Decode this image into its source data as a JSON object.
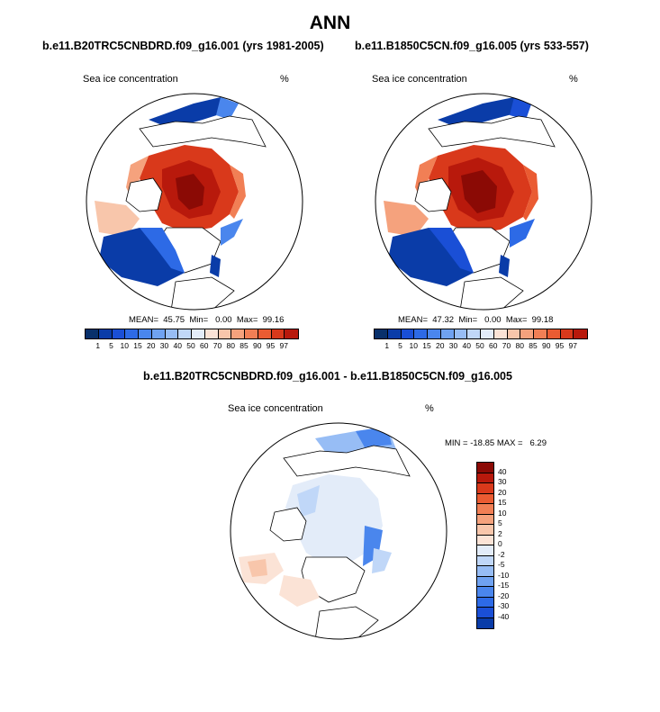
{
  "figure": {
    "title": "ANN",
    "units": "%",
    "variable": "Sea ice concentration"
  },
  "colors": {
    "seq": [
      "#08306b",
      "#0a3ca8",
      "#1a4fd6",
      "#2d6ae6",
      "#4a86ed",
      "#6fa2f1",
      "#97bdf5",
      "#c0d7f8",
      "#e3ecf9",
      "#fbe3d6",
      "#f8c6ab",
      "#f5a27d",
      "#f17f55",
      "#ea5b32",
      "#d9391b",
      "#b8190c",
      "#8b0a05"
    ],
    "diff": [
      "#8b0a05",
      "#b8190c",
      "#d9391b",
      "#ea5b32",
      "#f17f55",
      "#f5a27d",
      "#f8c6ab",
      "#fbe3d6",
      "#e3ecf9",
      "#c0d7f8",
      "#97bdf5",
      "#6fa2f1",
      "#4a86ed",
      "#2d6ae6",
      "#1a4fd6",
      "#0a3ca8",
      "#08306b"
    ]
  },
  "chart_data": [
    {
      "type": "heatmap",
      "projection": "north polar stereographic",
      "title": "b.e11.B20TRC5CNBDRD.f09_g16.001 (yrs 1981-2005)",
      "variable_label": "Sea ice concentration",
      "units": "%",
      "stats": {
        "mean": "45.75",
        "min": "0.00",
        "max": "99.16"
      },
      "stats_text": "MEAN=  45.75  Min=   0.00  Max=  99.16",
      "colorbar_levels": [
        "1",
        "5",
        "10",
        "15",
        "20",
        "30",
        "40",
        "50",
        "60",
        "70",
        "80",
        "85",
        "90",
        "95",
        "97"
      ],
      "colorbar_orientation": "horizontal"
    },
    {
      "type": "heatmap",
      "projection": "north polar stereographic",
      "title": "b.e11.B1850C5CN.f09_g16.005 (yrs 533-557)",
      "variable_label": "Sea ice concentration",
      "units": "%",
      "stats": {
        "mean": "47.32",
        "min": "0.00",
        "max": "99.18"
      },
      "stats_text": "MEAN=  47.32  Min=   0.00  Max=  99.18",
      "colorbar_levels": [
        "1",
        "5",
        "10",
        "15",
        "20",
        "30",
        "40",
        "50",
        "60",
        "70",
        "80",
        "85",
        "90",
        "95",
        "97"
      ],
      "colorbar_orientation": "horizontal"
    },
    {
      "type": "heatmap",
      "projection": "north polar stereographic",
      "title": "b.e11.B20TRC5CNBDRD.f09_g16.001 - b.e11.B1850C5CN.f09_g16.005",
      "variable_label": "Sea ice concentration",
      "units": "%",
      "stats": {
        "min": "-18.85",
        "max": "6.29"
      },
      "stats_text": "MIN = -18.85 MAX =   6.29",
      "colorbar_levels": [
        "40",
        "30",
        "20",
        "15",
        "10",
        "5",
        "2",
        "0",
        "-2",
        "-5",
        "-10",
        "-15",
        "-20",
        "-30",
        "-40"
      ],
      "colorbar_orientation": "vertical"
    }
  ]
}
